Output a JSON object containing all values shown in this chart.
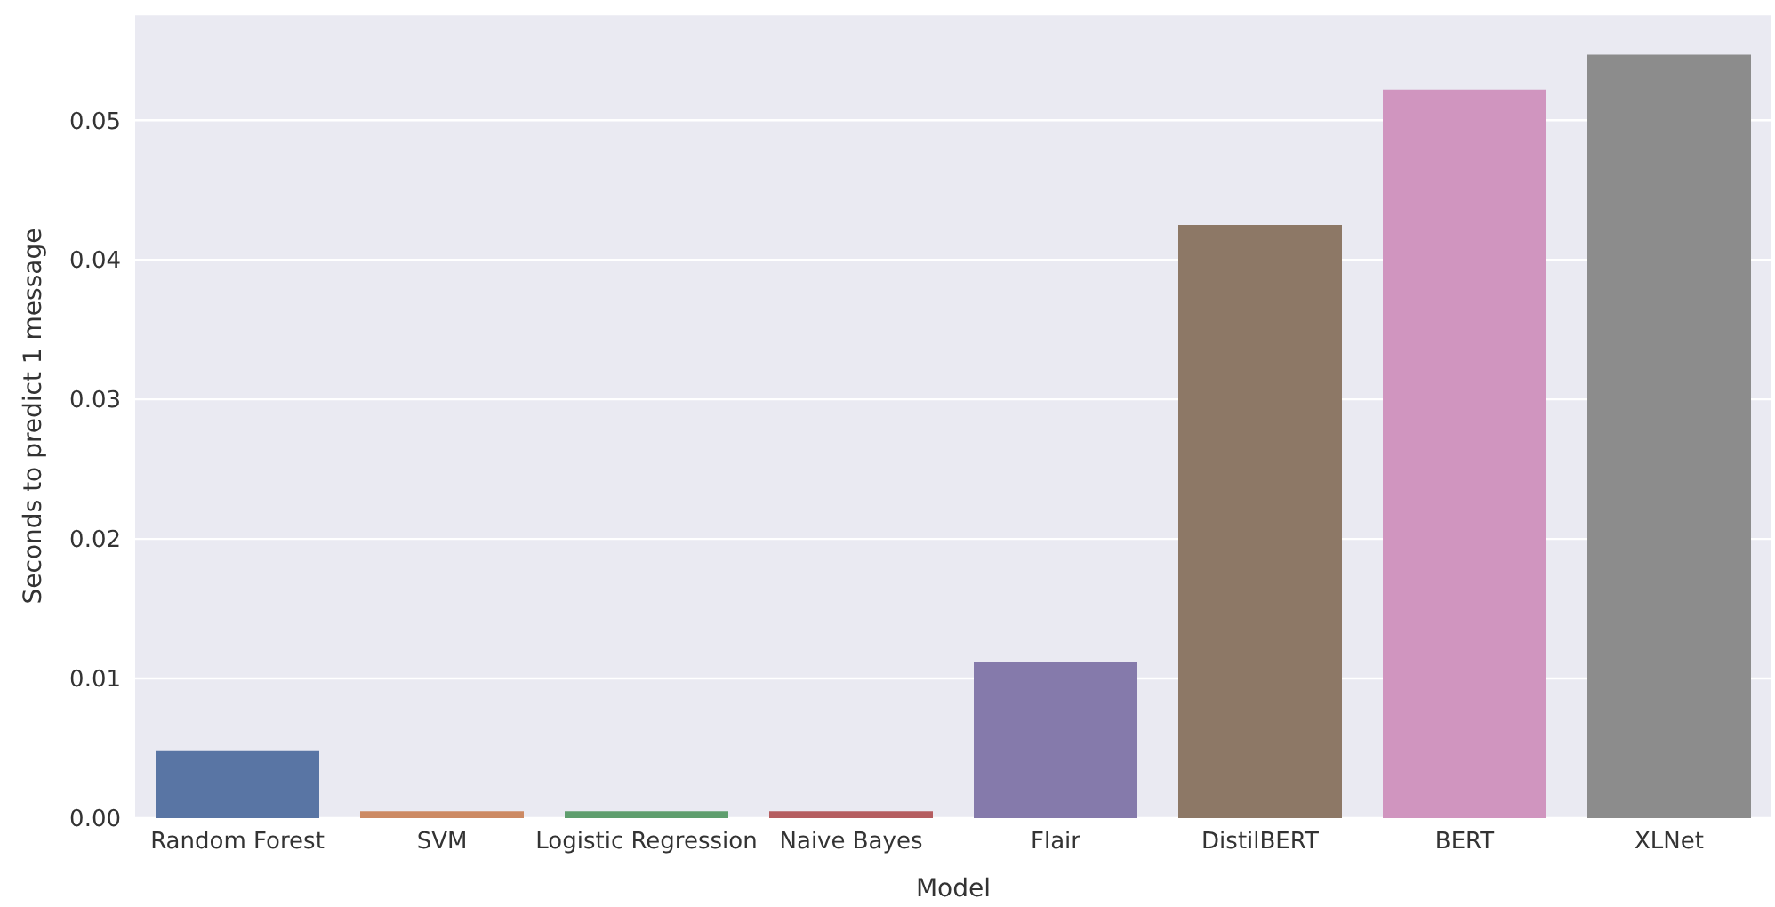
{
  "chart_data": {
    "type": "bar",
    "xlabel": "Model",
    "ylabel": "Seconds to predict 1 message",
    "categories": [
      "Random Forest",
      "SVM",
      "Logistic Regression",
      "Naive Bayes",
      "Flair",
      "DistilBERT",
      "BERT",
      "XLNet"
    ],
    "values": [
      0.0048,
      0.0005,
      0.0005,
      0.0005,
      0.0112,
      0.0425,
      0.0522,
      0.0547
    ],
    "colors": [
      "#5975a4",
      "#cc8963",
      "#5f9e6e",
      "#b55d60",
      "#857aab",
      "#8d7866",
      "#d095bf",
      "#8c8c8c"
    ],
    "ylim": [
      0,
      0.0576
    ],
    "yticks": [
      {
        "value": 0,
        "label": "0.00"
      },
      {
        "value": 0.01,
        "label": "0.01"
      },
      {
        "value": 0.02,
        "label": "0.02"
      },
      {
        "value": 0.03,
        "label": "0.03"
      },
      {
        "value": 0.04,
        "label": "0.04"
      },
      {
        "value": 0.05,
        "label": "0.05"
      }
    ],
    "grid": "y"
  }
}
